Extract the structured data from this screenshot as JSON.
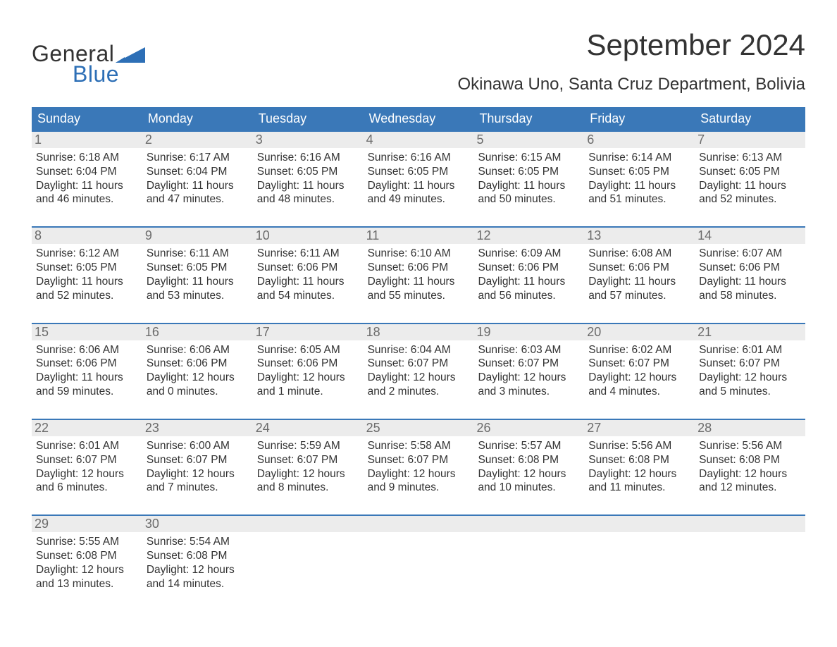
{
  "brand": {
    "line1": "General",
    "line2": "Blue",
    "flag_color": "#2d6fb6",
    "text_color": "#333333"
  },
  "title": "September 2024",
  "location": "Okinawa Uno, Santa Cruz Department, Bolivia",
  "colors": {
    "header_bg": "#3a78b8",
    "header_text": "#ffffff",
    "row_divider": "#3a78b8",
    "daynum_bg": "#ececec",
    "daynum_text": "#6b6b6b",
    "body_text": "#333333",
    "background": "#ffffff"
  },
  "weekdays": [
    "Sunday",
    "Monday",
    "Tuesday",
    "Wednesday",
    "Thursday",
    "Friday",
    "Saturday"
  ],
  "weeks": [
    [
      {
        "n": "1",
        "sunrise": "Sunrise: 6:18 AM",
        "sunset": "Sunset: 6:04 PM",
        "d1": "Daylight: 11 hours",
        "d2": "and 46 minutes."
      },
      {
        "n": "2",
        "sunrise": "Sunrise: 6:17 AM",
        "sunset": "Sunset: 6:04 PM",
        "d1": "Daylight: 11 hours",
        "d2": "and 47 minutes."
      },
      {
        "n": "3",
        "sunrise": "Sunrise: 6:16 AM",
        "sunset": "Sunset: 6:05 PM",
        "d1": "Daylight: 11 hours",
        "d2": "and 48 minutes."
      },
      {
        "n": "4",
        "sunrise": "Sunrise: 6:16 AM",
        "sunset": "Sunset: 6:05 PM",
        "d1": "Daylight: 11 hours",
        "d2": "and 49 minutes."
      },
      {
        "n": "5",
        "sunrise": "Sunrise: 6:15 AM",
        "sunset": "Sunset: 6:05 PM",
        "d1": "Daylight: 11 hours",
        "d2": "and 50 minutes."
      },
      {
        "n": "6",
        "sunrise": "Sunrise: 6:14 AM",
        "sunset": "Sunset: 6:05 PM",
        "d1": "Daylight: 11 hours",
        "d2": "and 51 minutes."
      },
      {
        "n": "7",
        "sunrise": "Sunrise: 6:13 AM",
        "sunset": "Sunset: 6:05 PM",
        "d1": "Daylight: 11 hours",
        "d2": "and 52 minutes."
      }
    ],
    [
      {
        "n": "8",
        "sunrise": "Sunrise: 6:12 AM",
        "sunset": "Sunset: 6:05 PM",
        "d1": "Daylight: 11 hours",
        "d2": "and 52 minutes."
      },
      {
        "n": "9",
        "sunrise": "Sunrise: 6:11 AM",
        "sunset": "Sunset: 6:05 PM",
        "d1": "Daylight: 11 hours",
        "d2": "and 53 minutes."
      },
      {
        "n": "10",
        "sunrise": "Sunrise: 6:11 AM",
        "sunset": "Sunset: 6:06 PM",
        "d1": "Daylight: 11 hours",
        "d2": "and 54 minutes."
      },
      {
        "n": "11",
        "sunrise": "Sunrise: 6:10 AM",
        "sunset": "Sunset: 6:06 PM",
        "d1": "Daylight: 11 hours",
        "d2": "and 55 minutes."
      },
      {
        "n": "12",
        "sunrise": "Sunrise: 6:09 AM",
        "sunset": "Sunset: 6:06 PM",
        "d1": "Daylight: 11 hours",
        "d2": "and 56 minutes."
      },
      {
        "n": "13",
        "sunrise": "Sunrise: 6:08 AM",
        "sunset": "Sunset: 6:06 PM",
        "d1": "Daylight: 11 hours",
        "d2": "and 57 minutes."
      },
      {
        "n": "14",
        "sunrise": "Sunrise: 6:07 AM",
        "sunset": "Sunset: 6:06 PM",
        "d1": "Daylight: 11 hours",
        "d2": "and 58 minutes."
      }
    ],
    [
      {
        "n": "15",
        "sunrise": "Sunrise: 6:06 AM",
        "sunset": "Sunset: 6:06 PM",
        "d1": "Daylight: 11 hours",
        "d2": "and 59 minutes."
      },
      {
        "n": "16",
        "sunrise": "Sunrise: 6:06 AM",
        "sunset": "Sunset: 6:06 PM",
        "d1": "Daylight: 12 hours",
        "d2": "and 0 minutes."
      },
      {
        "n": "17",
        "sunrise": "Sunrise: 6:05 AM",
        "sunset": "Sunset: 6:06 PM",
        "d1": "Daylight: 12 hours",
        "d2": "and 1 minute."
      },
      {
        "n": "18",
        "sunrise": "Sunrise: 6:04 AM",
        "sunset": "Sunset: 6:07 PM",
        "d1": "Daylight: 12 hours",
        "d2": "and 2 minutes."
      },
      {
        "n": "19",
        "sunrise": "Sunrise: 6:03 AM",
        "sunset": "Sunset: 6:07 PM",
        "d1": "Daylight: 12 hours",
        "d2": "and 3 minutes."
      },
      {
        "n": "20",
        "sunrise": "Sunrise: 6:02 AM",
        "sunset": "Sunset: 6:07 PM",
        "d1": "Daylight: 12 hours",
        "d2": "and 4 minutes."
      },
      {
        "n": "21",
        "sunrise": "Sunrise: 6:01 AM",
        "sunset": "Sunset: 6:07 PM",
        "d1": "Daylight: 12 hours",
        "d2": "and 5 minutes."
      }
    ],
    [
      {
        "n": "22",
        "sunrise": "Sunrise: 6:01 AM",
        "sunset": "Sunset: 6:07 PM",
        "d1": "Daylight: 12 hours",
        "d2": "and 6 minutes."
      },
      {
        "n": "23",
        "sunrise": "Sunrise: 6:00 AM",
        "sunset": "Sunset: 6:07 PM",
        "d1": "Daylight: 12 hours",
        "d2": "and 7 minutes."
      },
      {
        "n": "24",
        "sunrise": "Sunrise: 5:59 AM",
        "sunset": "Sunset: 6:07 PM",
        "d1": "Daylight: 12 hours",
        "d2": "and 8 minutes."
      },
      {
        "n": "25",
        "sunrise": "Sunrise: 5:58 AM",
        "sunset": "Sunset: 6:07 PM",
        "d1": "Daylight: 12 hours",
        "d2": "and 9 minutes."
      },
      {
        "n": "26",
        "sunrise": "Sunrise: 5:57 AM",
        "sunset": "Sunset: 6:08 PM",
        "d1": "Daylight: 12 hours",
        "d2": "and 10 minutes."
      },
      {
        "n": "27",
        "sunrise": "Sunrise: 5:56 AM",
        "sunset": "Sunset: 6:08 PM",
        "d1": "Daylight: 12 hours",
        "d2": "and 11 minutes."
      },
      {
        "n": "28",
        "sunrise": "Sunrise: 5:56 AM",
        "sunset": "Sunset: 6:08 PM",
        "d1": "Daylight: 12 hours",
        "d2": "and 12 minutes."
      }
    ],
    [
      {
        "n": "29",
        "sunrise": "Sunrise: 5:55 AM",
        "sunset": "Sunset: 6:08 PM",
        "d1": "Daylight: 12 hours",
        "d2": "and 13 minutes."
      },
      {
        "n": "30",
        "sunrise": "Sunrise: 5:54 AM",
        "sunset": "Sunset: 6:08 PM",
        "d1": "Daylight: 12 hours",
        "d2": "and 14 minutes."
      },
      null,
      null,
      null,
      null,
      null
    ]
  ]
}
